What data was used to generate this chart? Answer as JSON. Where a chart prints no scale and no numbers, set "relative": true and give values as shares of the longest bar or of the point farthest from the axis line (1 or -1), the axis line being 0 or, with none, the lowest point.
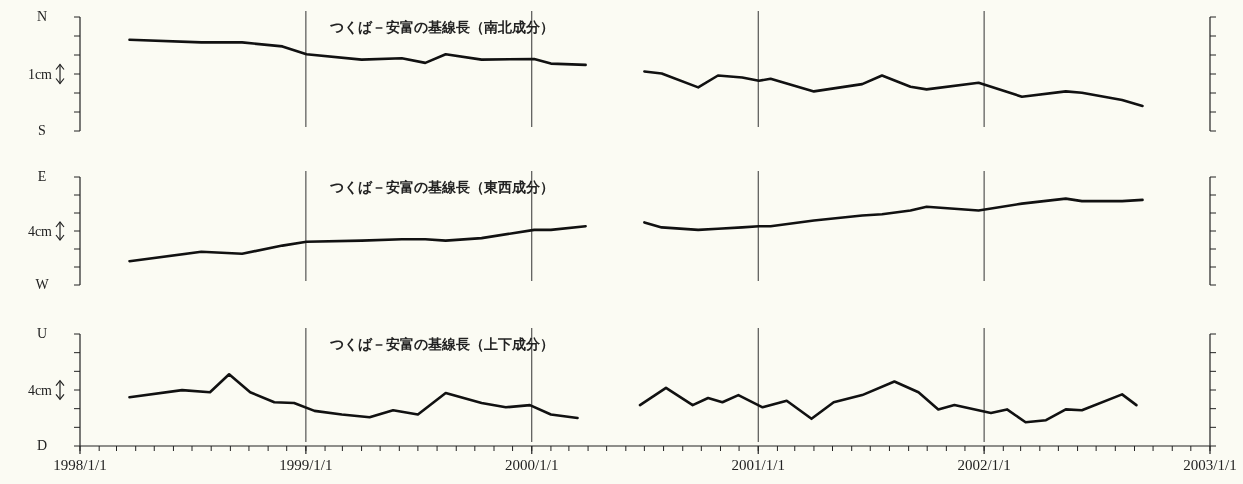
{
  "chart_data": [
    {
      "type": "line",
      "title": "つくば－安富の基線長（南北成分）",
      "annotations": [
        "N",
        "1cm",
        "S"
      ],
      "relative": true,
      "tick_labels": false,
      "xlim": [
        "1998-01-01",
        "2003-01-01"
      ],
      "ref_lines": [
        {
          "axis": "x",
          "value": "1999-01-01",
          "color": "#333333"
        },
        {
          "axis": "x",
          "value": "2000-01-01",
          "color": "#333333"
        },
        {
          "axis": "x",
          "value": "2001-01-01",
          "color": "#333333"
        },
        {
          "axis": "x",
          "value": "2002-01-01",
          "color": "#333333"
        }
      ],
      "series": [
        {
          "color": "#111111",
          "x": [
            "1998-03-22",
            "1998-07-16",
            "1998-09-20",
            "1998-11-24",
            "1999-01-02",
            "1999-04-01",
            "1999-06-05",
            "1999-07-13",
            "1999-08-15",
            "1999-10-12",
            "2000-01-05",
            "2000-02-01",
            "2000-03-28"
          ],
          "values": [
            1.0,
            0.96,
            0.96,
            0.9,
            0.78,
            0.7,
            0.72,
            0.65,
            0.78,
            0.7,
            0.71,
            0.64,
            0.62
          ]
        },
        {
          "color": "#111111",
          "x": [
            "2000-07-01",
            "2000-07-29",
            "2000-09-26",
            "2000-10-28",
            "2000-12-06",
            "2001-01-02",
            "2001-01-21",
            "2001-04-01",
            "2001-06-18",
            "2001-07-20",
            "2001-09-04",
            "2001-09-30",
            "2001-12-23",
            "2002-03-03",
            "2002-05-13",
            "2002-06-08",
            "2002-08-12",
            "2002-09-14"
          ],
          "values": [
            0.52,
            0.49,
            0.28,
            0.46,
            0.43,
            0.38,
            0.41,
            0.22,
            0.33,
            0.46,
            0.29,
            0.25,
            0.35,
            0.14,
            0.22,
            0.2,
            0.09,
            0.0
          ]
        }
      ]
    },
    {
      "type": "line",
      "title": "つくば－安富の基線長（東西成分）",
      "annotations": [
        "E",
        "4cm",
        "W"
      ],
      "relative": true,
      "tick_labels": false,
      "xlim": [
        "1998-01-01",
        "2003-01-01"
      ],
      "ref_lines": [
        {
          "axis": "x",
          "value": "1999-01-01",
          "color": "#333333"
        },
        {
          "axis": "x",
          "value": "2000-01-01",
          "color": "#333333"
        },
        {
          "axis": "x",
          "value": "2001-01-01",
          "color": "#333333"
        },
        {
          "axis": "x",
          "value": "2002-01-01",
          "color": "#333333"
        }
      ],
      "series": [
        {
          "color": "#111111",
          "x": [
            "1998-03-22",
            "1998-07-16",
            "1998-09-20",
            "1998-11-24",
            "1999-01-02",
            "1999-04-01",
            "1999-06-05",
            "1999-07-13",
            "1999-08-15",
            "1999-10-12",
            "2000-01-05",
            "2000-02-01",
            "2000-03-28"
          ],
          "values": [
            0.0,
            0.15,
            0.12,
            0.25,
            0.31,
            0.33,
            0.35,
            0.35,
            0.33,
            0.37,
            0.5,
            0.5,
            0.56
          ]
        },
        {
          "color": "#111111",
          "x": [
            "2000-07-01",
            "2000-07-29",
            "2000-09-26",
            "2000-10-28",
            "2000-12-06",
            "2001-01-02",
            "2001-01-21",
            "2001-04-01",
            "2001-06-18",
            "2001-07-20",
            "2001-09-04",
            "2001-09-30",
            "2001-12-23",
            "2002-03-03",
            "2002-05-13",
            "2002-06-08",
            "2002-08-12",
            "2002-09-14"
          ],
          "values": [
            0.62,
            0.54,
            0.5,
            0.52,
            0.54,
            0.56,
            0.56,
            0.65,
            0.73,
            0.75,
            0.81,
            0.87,
            0.81,
            0.92,
            1.0,
            0.96,
            0.96,
            0.98
          ]
        }
      ]
    },
    {
      "type": "line",
      "title": "つくば－安富の基線長（上下成分）",
      "annotations": [
        "U",
        "4cm",
        "D"
      ],
      "relative": true,
      "tick_labels": "x",
      "xlim": [
        "1998-01-01",
        "2003-01-01"
      ],
      "xticks": [
        {
          "value": "1998-01-01",
          "label": "1998/1/1"
        },
        {
          "value": "1999-01-01",
          "label": "1999/1/1"
        },
        {
          "value": "2000-01-01",
          "label": "2000/1/1"
        },
        {
          "value": "2001-01-01",
          "label": "2001/1/1"
        },
        {
          "value": "2002-01-01",
          "label": "2002/1/1"
        },
        {
          "value": "2003-01-01",
          "label": "2003/1/1"
        }
      ],
      "ref_lines": [
        {
          "axis": "x",
          "value": "1999-01-01",
          "color": "#333333"
        },
        {
          "axis": "x",
          "value": "2000-01-01",
          "color": "#333333"
        },
        {
          "axis": "x",
          "value": "2001-01-01",
          "color": "#333333"
        },
        {
          "axis": "x",
          "value": "2002-01-01",
          "color": "#333333"
        }
      ],
      "series": [
        {
          "color": "#111111",
          "x": [
            "1998-03-22",
            "1998-06-15",
            "1998-07-30",
            "1998-08-30",
            "1998-10-03",
            "1998-11-11",
            "1998-12-13",
            "1999-01-15",
            "1999-02-28",
            "1999-04-14",
            "1999-05-22",
            "1999-07-01",
            "1999-08-15",
            "1999-10-12",
            "1999-11-20",
            "1999-12-29",
            "2000-02-01",
            "2000-03-15"
          ],
          "values": [
            0.68,
            0.78,
            0.75,
            1.0,
            0.75,
            0.61,
            0.6,
            0.49,
            0.44,
            0.4,
            0.5,
            0.44,
            0.74,
            0.6,
            0.54,
            0.57,
            0.44,
            0.39
          ]
        },
        {
          "color": "#111111",
          "x": [
            "2000-06-24",
            "2000-08-05",
            "2000-09-17",
            "2000-10-12",
            "2000-11-04",
            "2000-11-30",
            "2001-01-08",
            "2001-02-16",
            "2001-03-28",
            "2001-05-03",
            "2001-06-18",
            "2001-08-09",
            "2001-09-17",
            "2001-10-19",
            "2001-11-14",
            "2002-01-12",
            "2002-02-07",
            "2002-03-09",
            "2002-04-11",
            "2002-05-13",
            "2002-06-08",
            "2002-08-12",
            "2002-09-04"
          ],
          "values": [
            0.57,
            0.81,
            0.57,
            0.67,
            0.61,
            0.71,
            0.54,
            0.63,
            0.38,
            0.61,
            0.71,
            0.9,
            0.75,
            0.51,
            0.57,
            0.46,
            0.51,
            0.33,
            0.36,
            0.51,
            0.5,
            0.72,
            0.57
          ]
        }
      ]
    }
  ]
}
